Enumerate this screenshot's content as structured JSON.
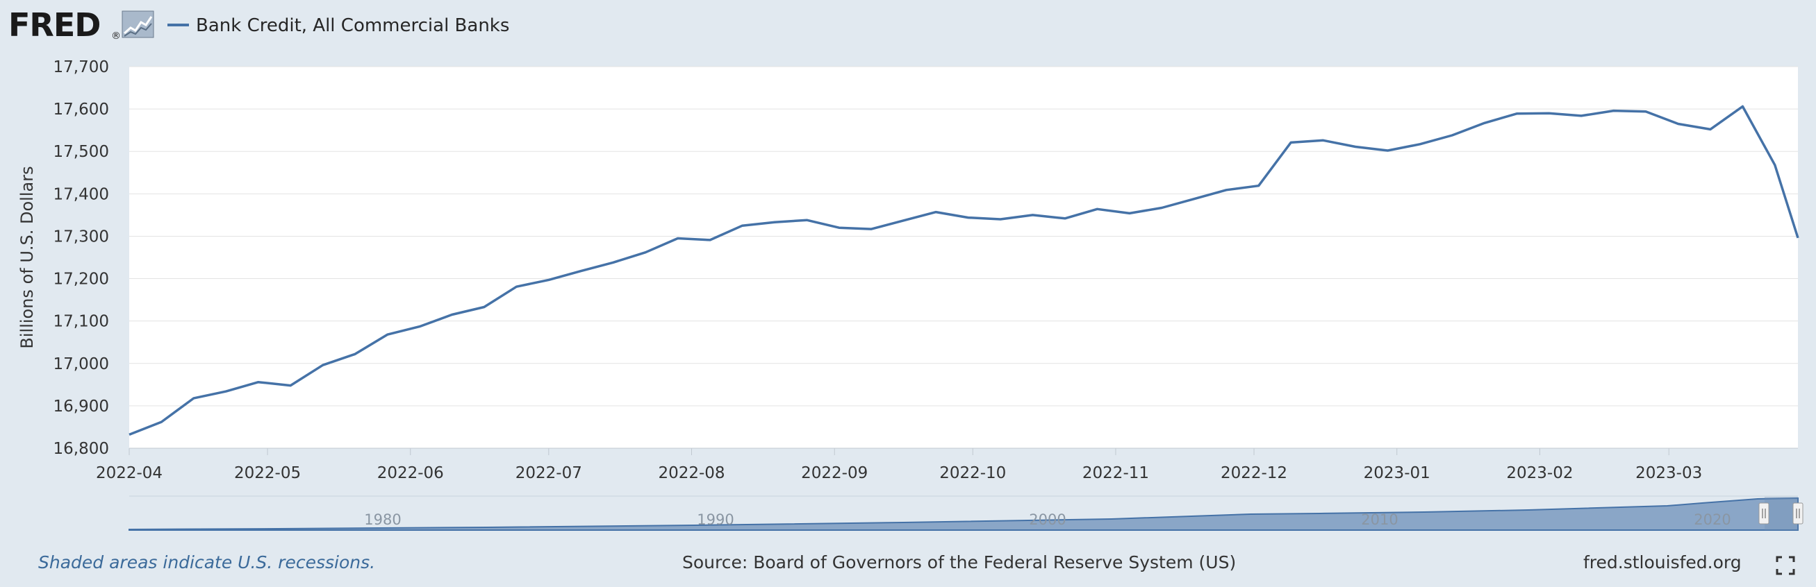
{
  "logo": {
    "text": "FRED",
    "registered": "®"
  },
  "colors": {
    "background": "#e1e9f0",
    "plot_background": "#ffffff",
    "series_line": "#4572a7",
    "navigator_fill": "#8aa6c7",
    "note_text": "#3b6a9a"
  },
  "footer": {
    "note": "Shaded areas indicate U.S. recessions.",
    "source": "Source: Board of Governors of the Federal Reserve System (US)",
    "url": "fred.stlouisfed.org"
  },
  "icons": {
    "logo_chart": "line-chart-icon",
    "fullscreen": "fullscreen-icon",
    "navigator_handle": "drag-handle-icon"
  },
  "navigator": {
    "year_labels": [
      "1980",
      "1990",
      "2000",
      "2010",
      "2020"
    ]
  },
  "chart_data": {
    "type": "line",
    "title": "",
    "xlabel": "",
    "ylabel": "Billions of U.S. Dollars",
    "ylim": [
      16800,
      17700
    ],
    "yticks": [
      "17,700",
      "17,600",
      "17,500",
      "17,400",
      "17,300",
      "17,200",
      "17,100",
      "17,000",
      "16,900",
      "16,800"
    ],
    "xlim": [
      "2022-04-01",
      "2023-03-29"
    ],
    "xticks": [
      "2022-04",
      "2022-05",
      "2022-06",
      "2022-07",
      "2022-08",
      "2022-09",
      "2022-10",
      "2022-11",
      "2022-12",
      "2023-01",
      "2023-02",
      "2023-03"
    ],
    "grid": true,
    "legend_position": "top-left",
    "series": [
      {
        "name": "Bank Credit, All Commercial Banks",
        "x": [
          "2022-04-01",
          "2022-04-08",
          "2022-04-15",
          "2022-04-22",
          "2022-04-29",
          "2022-05-06",
          "2022-05-13",
          "2022-05-20",
          "2022-05-27",
          "2022-06-03",
          "2022-06-10",
          "2022-06-17",
          "2022-06-24",
          "2022-07-01",
          "2022-07-08",
          "2022-07-15",
          "2022-07-22",
          "2022-07-29",
          "2022-08-05",
          "2022-08-12",
          "2022-08-19",
          "2022-08-26",
          "2022-09-02",
          "2022-09-09",
          "2022-09-16",
          "2022-09-23",
          "2022-09-30",
          "2022-10-07",
          "2022-10-14",
          "2022-10-21",
          "2022-10-28",
          "2022-11-04",
          "2022-11-11",
          "2022-11-18",
          "2022-11-25",
          "2022-12-02",
          "2022-12-09",
          "2022-12-16",
          "2022-12-23",
          "2022-12-30",
          "2023-01-06",
          "2023-01-13",
          "2023-01-20",
          "2023-01-27",
          "2023-02-03",
          "2023-02-10",
          "2023-02-17",
          "2023-02-24",
          "2023-03-03",
          "2023-03-10",
          "2023-03-17",
          "2023-03-24",
          "2023-03-29"
        ],
        "values": [
          16832,
          16862,
          16918,
          16934,
          16956,
          16948,
          16996,
          17022,
          17068,
          17087,
          17115,
          17133,
          17181,
          17197,
          17218,
          17238,
          17262,
          17295,
          17291,
          17325,
          17333,
          17338,
          17320,
          17317,
          17337,
          17357,
          17344,
          17340,
          17350,
          17342,
          17364,
          17354,
          17367,
          17388,
          17409,
          17419,
          17521,
          17526,
          17511,
          17502,
          17517,
          17538,
          17567,
          17589,
          17590,
          17584,
          17596,
          17594,
          17565,
          17552,
          17606,
          17468,
          17296
        ]
      }
    ]
  }
}
